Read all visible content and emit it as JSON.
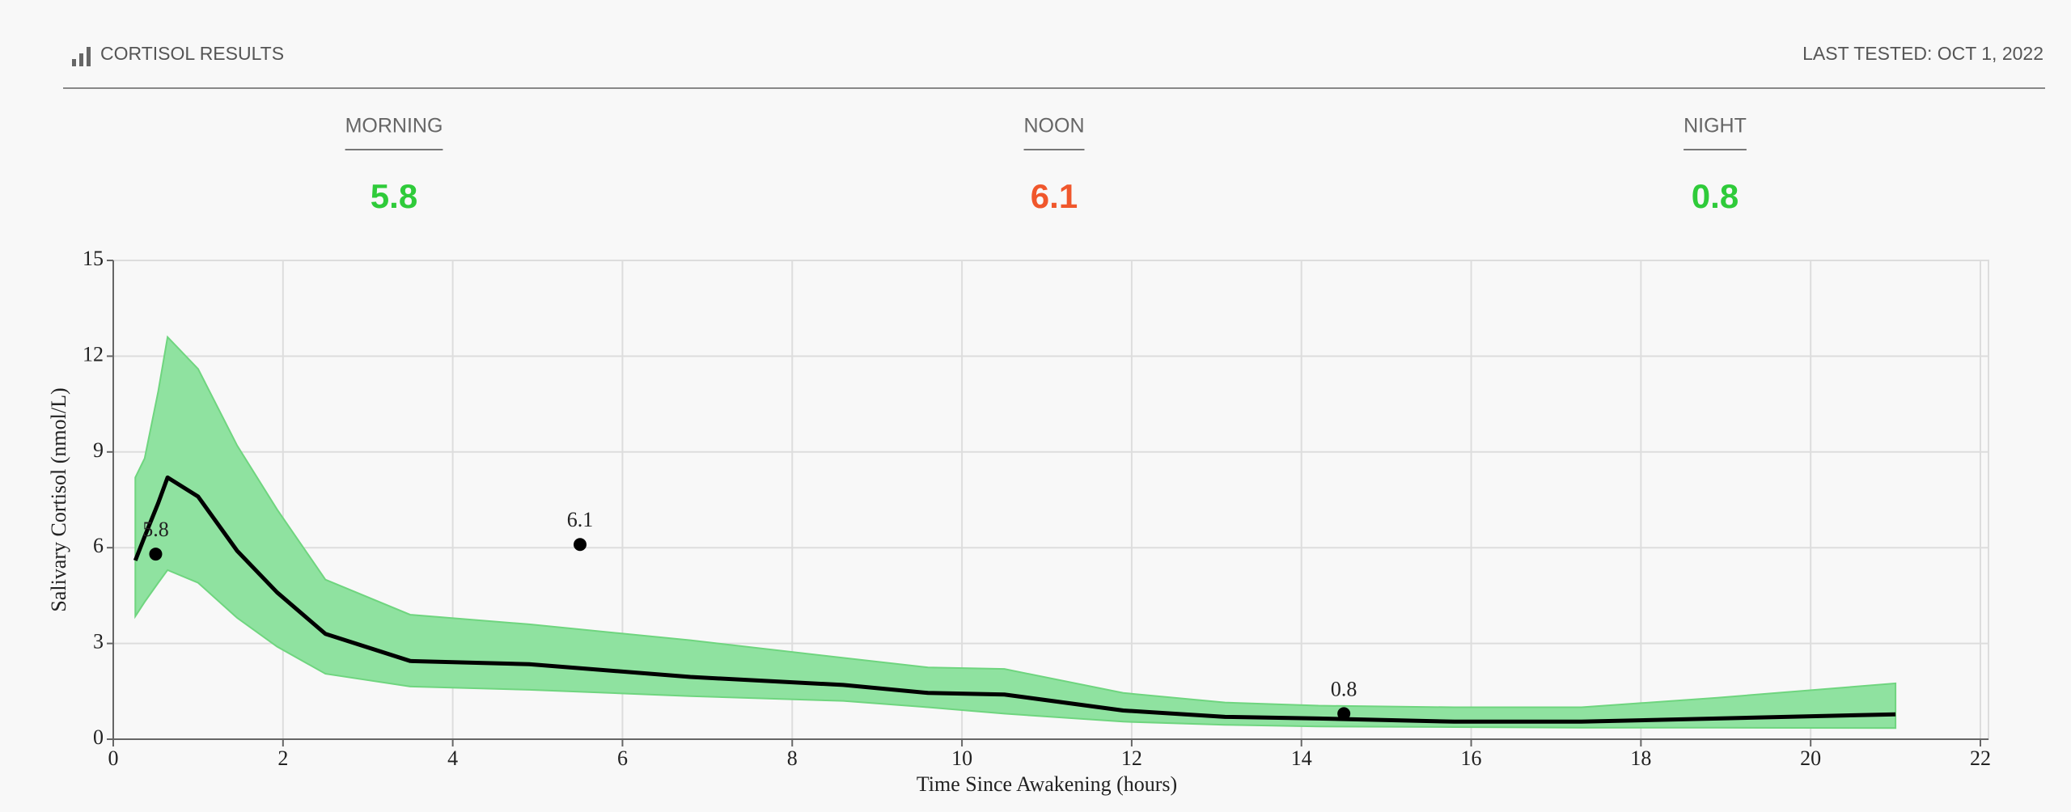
{
  "header": {
    "title": "CORTISOL RESULTS",
    "last_tested": "LAST TESTED: OCT 1, 2022"
  },
  "summary": [
    {
      "label": "MORNING",
      "value": 5.8,
      "color": "#2fcb3a"
    },
    {
      "label": "NOON",
      "value": 6.1,
      "color": "#f0572c"
    },
    {
      "label": "NIGHT",
      "value": 0.8,
      "color": "#2fcb3a"
    }
  ],
  "chart_data": {
    "type": "line",
    "y_label": "Salivary Cortisol (nmol/L)",
    "x_label": "Time Since Awakening (hours)",
    "x": [
      0.26,
      0.37,
      0.53,
      0.64,
      1.0,
      1.46,
      1.93,
      2.5,
      3.5,
      4.9,
      6.8,
      8.6,
      9.6,
      10.5,
      11.9,
      13.1,
      14.2,
      15.8,
      17.3,
      18.9,
      21
    ],
    "series": [
      {
        "color": "#000000",
        "values": [
          5.6,
          6.35,
          7.4,
          8.2,
          7.6,
          5.9,
          4.6,
          3.3,
          2.45,
          2.35,
          1.95,
          1.7,
          1.45,
          1.4,
          0.9,
          0.7,
          0.65,
          0.55,
          0.55,
          0.65,
          0.78
        ]
      }
    ],
    "band": {
      "color": "#8fe2a0",
      "lower": [
        3.85,
        4.3,
        4.9,
        5.3,
        4.9,
        3.8,
        2.9,
        2.05,
        1.65,
        1.55,
        1.35,
        1.2,
        1.0,
        0.8,
        0.55,
        0.45,
        0.4,
        0.38,
        0.36,
        0.36,
        0.35
      ],
      "upper": [
        8.2,
        8.8,
        10.9,
        12.6,
        11.6,
        9.2,
        7.2,
        5.0,
        3.9,
        3.6,
        3.1,
        2.55,
        2.25,
        2.2,
        1.45,
        1.15,
        1.05,
        1.0,
        1.0,
        1.3,
        1.75
      ]
    },
    "points": {
      "x": [
        0.5,
        5.5,
        14.5
      ],
      "values": [
        5.8,
        6.1,
        0.8
      ],
      "color": "#000000"
    },
    "xlim": [
      0,
      22
    ],
    "ylim": [
      0,
      15
    ],
    "xticks": [
      0,
      2,
      4,
      6,
      8,
      10,
      12,
      14,
      16,
      18,
      20,
      22
    ],
    "yticks": [
      0,
      3,
      6,
      9,
      12,
      15
    ],
    "grid": true
  }
}
